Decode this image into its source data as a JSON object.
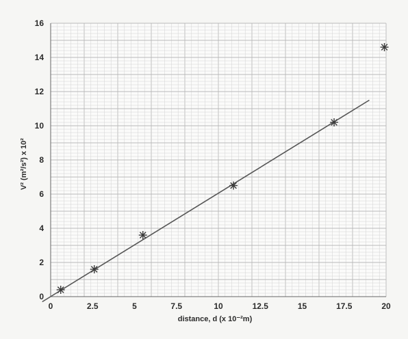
{
  "chart_data": {
    "type": "scatter",
    "title": "",
    "xlabel": "distance, d (x 10⁻²m)",
    "ylabel": "V² (m²/s²) x 10²",
    "xlim": [
      0,
      20
    ],
    "ylim": [
      0,
      16
    ],
    "x_ticks": [
      "0",
      "2.5",
      "5",
      "7.5",
      "10",
      "12.5",
      "15",
      "17.5",
      "20"
    ],
    "y_ticks": [
      "0",
      "2",
      "4",
      "6",
      "8",
      "10",
      "12",
      "14",
      "16"
    ],
    "grid": true,
    "series": [
      {
        "marker": "asterisk",
        "x": [
          0.6,
          2.6,
          5.5,
          10.9,
          16.9,
          19.9
        ],
        "y": [
          0.4,
          1.6,
          3.6,
          6.5,
          10.2,
          14.6
        ]
      }
    ],
    "fit_line": {
      "x": [
        -0.5,
        19.0
      ],
      "y": [
        -0.3,
        11.5
      ]
    },
    "colors": {
      "line": "#555555",
      "marker": "#3a3a3a",
      "grid_minor": "#d2d2d2",
      "grid_major": "#b9b9b9"
    }
  }
}
